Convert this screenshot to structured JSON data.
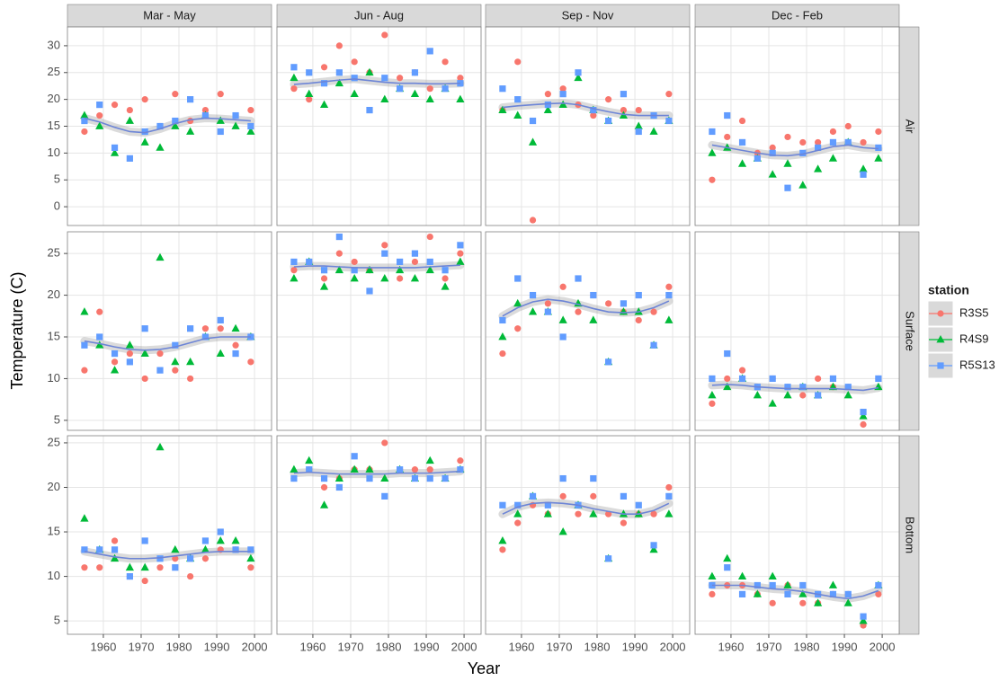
{
  "chart_data": {
    "type": "scatter",
    "x_label": "Year",
    "y_label": "Temperature (C)",
    "legend_title": "station",
    "columns": [
      "Mar - May",
      "Jun - Aug",
      "Sep - Nov",
      "Dec - Feb"
    ],
    "rows": [
      "Air",
      "Surface",
      "Bottom"
    ],
    "x": [
      1955,
      1959,
      1963,
      1967,
      1971,
      1975,
      1979,
      1983,
      1987,
      1991,
      1995,
      1999
    ],
    "xlim": [
      1950.5,
      2004.5
    ],
    "xticks": [
      1960,
      1970,
      1980,
      1990,
      2000
    ],
    "ylims": [
      [
        -3.5,
        33.5
      ],
      [
        3.8,
        27.6
      ],
      [
        3.5,
        25.8
      ]
    ],
    "yticks": [
      [
        0,
        5,
        10,
        15,
        20,
        25,
        30
      ],
      [
        5,
        10,
        15,
        20,
        25
      ],
      [
        5,
        10,
        15,
        20,
        25
      ]
    ],
    "grid": true,
    "trend_color": "#6d85d6",
    "series": [
      {
        "name": "R3S5",
        "color": "#f8766d",
        "shape": "circle"
      },
      {
        "name": "R4S9",
        "color": "#00ba38",
        "shape": "triangle"
      },
      {
        "name": "R5S13",
        "color": "#619cff",
        "shape": "square"
      }
    ],
    "panels": [
      {
        "series": [
          {
            "values": [
              14,
              17,
              19,
              18,
              20,
              15,
              21,
              16,
              18,
              21,
              17,
              18
            ]
          },
          {
            "values": [
              17,
              15,
              10,
              16,
              12,
              11,
              15,
              14,
              17,
              16,
              15,
              14
            ]
          },
          {
            "values": [
              16,
              19,
              11,
              9,
              14,
              15,
              16,
              20,
              17,
              14,
              17,
              15
            ]
          }
        ],
        "trend": [
          16.5,
          15.8,
          14.8,
          14,
          13.8,
          14.5,
          15.5,
          16.2,
          16.5,
          16.4,
          16.2,
          16
        ]
      },
      {
        "series": [
          {
            "values": [
              22,
              20,
              26,
              30,
              27,
              25,
              32,
              24,
              25,
              22,
              27,
              24
            ]
          },
          {
            "values": [
              24,
              21,
              19,
              23,
              21,
              25,
              20,
              22,
              21,
              20,
              22,
              20
            ]
          },
          {
            "values": [
              26,
              25,
              23,
              25,
              24,
              18,
              24,
              22,
              25,
              29,
              22,
              23
            ]
          }
        ],
        "trend": [
          22.8,
          23,
          23.3,
          23.6,
          23.8,
          23.5,
          23.2,
          23,
          23,
          22.9,
          22.9,
          23
        ]
      },
      {
        "series": [
          {
            "values": [
              18,
              27,
              -2.5,
              21,
              22,
              19,
              17,
              20,
              18,
              18,
              17,
              21
            ]
          },
          {
            "values": [
              18,
              17,
              12,
              18,
              19,
              24,
              18,
              16,
              17,
              15,
              14,
              16
            ]
          },
          {
            "values": [
              22,
              20,
              16,
              19,
              21,
              25,
              18,
              16,
              21,
              14,
              17,
              16
            ]
          }
        ],
        "trend": [
          18.5,
          18.8,
          19,
          19.2,
          19.3,
          19,
          18.3,
          17.7,
          17.2,
          17,
          17,
          17
        ]
      },
      {
        "series": [
          {
            "values": [
              5,
              13,
              16,
              10,
              11,
              13,
              12,
              12,
              14,
              15,
              12,
              14
            ]
          },
          {
            "values": [
              10,
              11,
              8,
              9,
              6,
              8,
              4,
              7,
              9,
              12,
              7,
              9
            ]
          },
          {
            "values": [
              14,
              17,
              12,
              9,
              10,
              3.5,
              10,
              11,
              12,
              12,
              6,
              11
            ]
          }
        ],
        "trend": [
          11.5,
          11,
          10.5,
          10,
          9.6,
          9.5,
          9.8,
          10.5,
          11.2,
          11.5,
          11,
          10.8
        ]
      },
      {
        "series": [
          {
            "values": [
              11,
              18,
              12,
              13,
              10,
              13,
              11,
              10,
              16,
              16,
              14,
              12
            ]
          },
          {
            "values": [
              18,
              14,
              11,
              14,
              13,
              24.5,
              12,
              12,
              15,
              13,
              16,
              15
            ]
          },
          {
            "values": [
              14,
              15,
              13,
              12,
              16,
              11,
              14,
              16,
              15,
              17,
              13,
              15
            ]
          }
        ],
        "trend": [
          14.5,
          14.2,
          13.8,
          13.5,
          13.4,
          13.5,
          13.8,
          14.3,
          14.8,
          15,
          15,
          15
        ]
      },
      {
        "series": [
          {
            "values": [
              23,
              24,
              22,
              25,
              24,
              23,
              26,
              22,
              24,
              27,
              22,
              25
            ]
          },
          {
            "values": [
              22,
              24,
              21,
              23,
              22,
              23,
              22,
              23,
              22,
              23,
              21,
              24
            ]
          },
          {
            "values": [
              24,
              24,
              23,
              27,
              23,
              20.5,
              25,
              24,
              25,
              24,
              23,
              26
            ]
          }
        ],
        "trend": [
          23.4,
          23.5,
          23.5,
          23.4,
          23.3,
          23.3,
          23.3,
          23.3,
          23.3,
          23.4,
          23.5,
          23.6
        ]
      },
      {
        "series": [
          {
            "values": [
              13,
              16,
              20,
              19,
              21,
              18,
              20,
              19,
              18,
              17,
              18,
              21
            ]
          },
          {
            "values": [
              15,
              19,
              18,
              18,
              17,
              19,
              17,
              12,
              18,
              18,
              14,
              17
            ]
          },
          {
            "values": [
              17,
              22,
              20,
              18,
              15,
              22,
              20,
              12,
              19,
              20,
              14,
              20
            ]
          }
        ],
        "trend": [
          17.5,
          18.5,
          19.2,
          19.5,
          19.3,
          18.9,
          18.4,
          18,
          17.9,
          18,
          18.5,
          19.3
        ]
      },
      {
        "series": [
          {
            "values": [
              7,
              10,
              11,
              9,
              10,
              9,
              8,
              10,
              9,
              9,
              4.5,
              10
            ]
          },
          {
            "values": [
              8,
              9,
              10,
              8,
              7,
              8,
              9,
              8,
              9,
              8,
              5.5,
              9
            ]
          },
          {
            "values": [
              10,
              13,
              10,
              9,
              10,
              9,
              9,
              8,
              10,
              9,
              6,
              10
            ]
          }
        ],
        "trend": [
          9.2,
          9.3,
          9.2,
          9,
          8.9,
          8.8,
          8.8,
          8.8,
          8.8,
          8.7,
          8.6,
          8.9
        ]
      },
      {
        "series": [
          {
            "values": [
              11,
              11,
              14,
              10,
              9.5,
              11,
              12,
              10,
              12,
              13,
              13,
              11
            ]
          },
          {
            "values": [
              16.5,
              13,
              12,
              11,
              11,
              24.5,
              13,
              12,
              13,
              14,
              14,
              12
            ]
          },
          {
            "values": [
              13,
              13,
              13,
              10,
              14,
              12,
              11,
              12,
              14,
              15,
              13,
              13
            ]
          }
        ],
        "trend": [
          12.8,
          12.5,
          12.2,
          12,
          12,
          12.1,
          12.3,
          12.5,
          12.7,
          12.8,
          12.8,
          12.8
        ]
      },
      {
        "series": [
          {
            "values": [
              21,
              22,
              20,
              21,
              22,
              22,
              25,
              22,
              22,
              22,
              21,
              23
            ]
          },
          {
            "values": [
              22,
              23,
              18,
              21,
              22,
              22,
              21,
              22,
              21,
              23,
              21,
              22
            ]
          },
          {
            "values": [
              21,
              22,
              21,
              20,
              23.5,
              21,
              19,
              22,
              21,
              21,
              21,
              22
            ]
          }
        ],
        "trend": [
          21.6,
          21.7,
          21.6,
          21.5,
          21.5,
          21.5,
          21.5,
          21.6,
          21.6,
          21.6,
          21.7,
          21.8
        ]
      },
      {
        "series": [
          {
            "values": [
              13,
              16,
              18,
              17,
              19,
              17,
              19,
              17,
              16,
              17,
              17,
              20
            ]
          },
          {
            "values": [
              14,
              17,
              19,
              17,
              15,
              18,
              17,
              12,
              17,
              17,
              13,
              17
            ]
          },
          {
            "values": [
              18,
              18,
              19,
              18,
              21,
              18,
              21,
              12,
              19,
              18,
              13.5,
              19
            ]
          }
        ],
        "trend": [
          17,
          17.8,
          18.2,
          18.3,
          18.2,
          18,
          17.6,
          17.3,
          17,
          17,
          17.4,
          18.2
        ]
      },
      {
        "series": [
          {
            "values": [
              8,
              9,
              9,
              8,
              7,
              9,
              7,
              7,
              8,
              8,
              4.5,
              8
            ]
          },
          {
            "values": [
              10,
              12,
              10,
              8,
              10,
              9,
              8,
              7,
              9,
              7,
              5,
              9
            ]
          },
          {
            "values": [
              9,
              11,
              8,
              9,
              9,
              8,
              9,
              8,
              8,
              8,
              5.5,
              9
            ]
          }
        ],
        "trend": [
          9,
          9,
          9,
          8.8,
          8.6,
          8.5,
          8.3,
          8,
          7.7,
          7.5,
          7.8,
          8.4
        ]
      }
    ]
  }
}
